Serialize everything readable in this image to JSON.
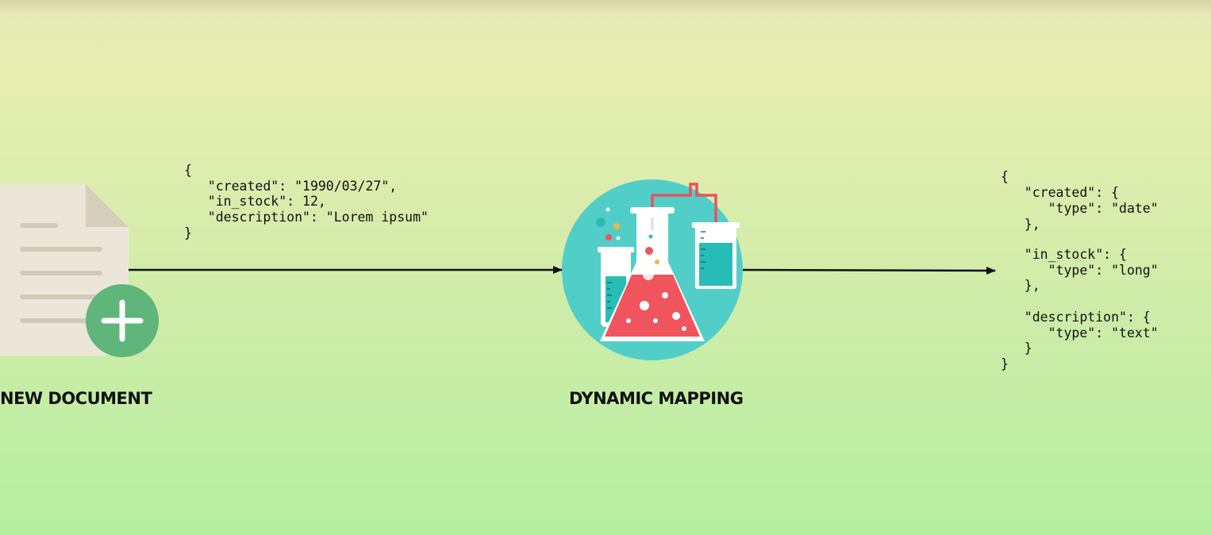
{
  "nodes": {
    "new_document": {
      "label": "NEW DOCUMENT"
    },
    "dynamic_mapping": {
      "label": "DYNAMIC MAPPING"
    }
  },
  "input_json_lines": [
    "{",
    "   \"created\": \"1990/03/27\",",
    "   \"in_stock\": 12,",
    "   \"description\": \"Lorem ipsum\"",
    "}"
  ],
  "output_json_lines": [
    "{",
    "   \"created\": {",
    "      \"type\": \"date\"",
    "   },",
    "   \"in_stock\": {",
    "      \"type\": \"long\"",
    "   },",
    "   \"description\": {",
    "      \"type\": \"text\"",
    "   }",
    "}"
  ],
  "icons": [
    "document-icon",
    "plus-icon",
    "lab-flask-icon"
  ],
  "colors": {
    "document": "#ece6d8",
    "document_fold": "#d6cfbd",
    "document_lines": "#d2cab8",
    "plus_badge": "#5fb57a",
    "lab_circle": "#52cec9",
    "flask_liquid": "#f0545c",
    "tube_liquid": "#27bdb6",
    "arrow": "#111111"
  }
}
